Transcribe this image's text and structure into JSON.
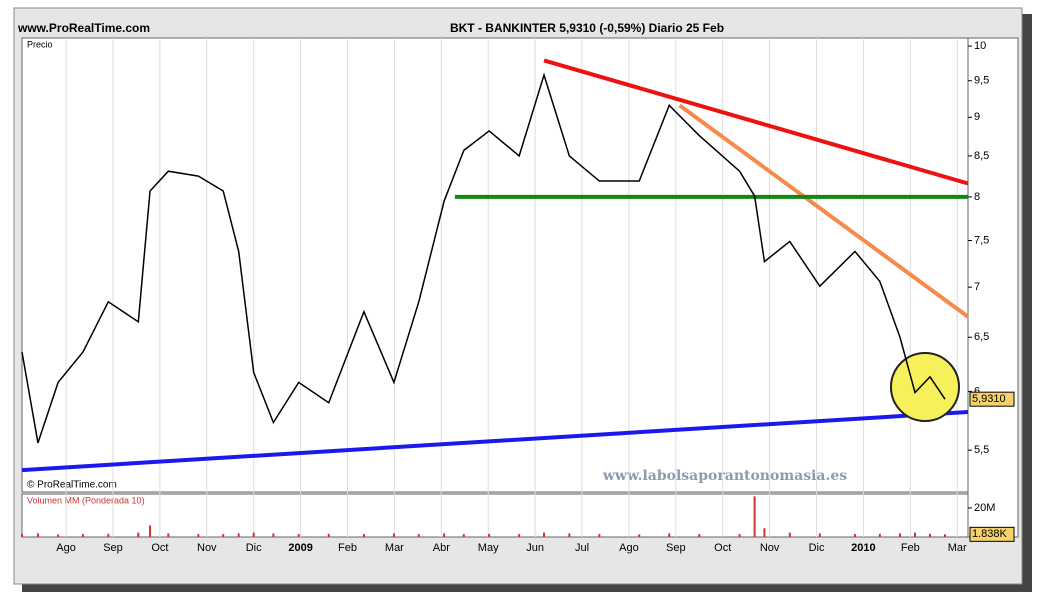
{
  "chart_data": [
    {
      "type": "line",
      "site": "www.ProRealTime.com",
      "title": "BKT - BANKINTER   5,9310 (-0,59%)   Diario  25 Feb",
      "y_label": "Precio",
      "copyright": "© ProRealTime.com",
      "watermark": "www.labolsaporantonomasia.es",
      "log_scale": true,
      "color": "#000000",
      "x": [
        -0.94,
        -0.6,
        -0.17,
        0.36,
        0.9,
        1.54,
        1.79,
        2.18,
        2.82,
        3.35,
        3.68,
        4.0,
        4.42,
        4.96,
        5.6,
        6.35,
        6.99,
        7.52,
        8.06,
        8.48,
        9.02,
        9.66,
        10.19,
        10.73,
        11.37,
        12.22,
        12.86,
        13.5,
        14.36,
        14.68,
        14.89,
        15.43,
        16.07,
        16.82,
        17.35,
        17.78,
        18.1,
        18.42,
        18.74
      ],
      "values": [
        6.36,
        5.56,
        6.08,
        6.36,
        6.85,
        6.65,
        8.07,
        8.31,
        8.25,
        8.07,
        7.38,
        6.17,
        5.73,
        6.08,
        5.9,
        6.75,
        6.08,
        6.85,
        7.95,
        8.57,
        8.82,
        8.5,
        9.58,
        8.5,
        8.19,
        8.19,
        9.16,
        8.76,
        8.31,
        8.01,
        7.27,
        7.49,
        7.01,
        7.38,
        7.06,
        6.5,
        5.99,
        6.13,
        5.931
      ],
      "last_value": {
        "value": 5.931,
        "label": "5,9310"
      },
      "xlim": [
        -0.94,
        19.23
      ],
      "ylim": [
        5.17,
        10.12
      ],
      "yticks": [
        {
          "value": 5.5,
          "label": "5,5"
        },
        6,
        {
          "value": 6.5,
          "label": "6,5"
        },
        7,
        {
          "value": 7.5,
          "label": "7,5"
        },
        8,
        {
          "value": 8.5,
          "label": "8,5"
        },
        9,
        {
          "value": 9.5,
          "label": "9,5"
        },
        10
      ],
      "xticks": [
        {
          "value": 0,
          "label": "Ago"
        },
        {
          "value": 1,
          "label": "Sep"
        },
        {
          "value": 2,
          "label": "Oct"
        },
        {
          "value": 3,
          "label": "Nov"
        },
        {
          "value": 4,
          "label": "Dic"
        },
        {
          "value": 5,
          "label": "2009"
        },
        {
          "value": 6,
          "label": "Feb"
        },
        {
          "value": 7,
          "label": "Mar"
        },
        {
          "value": 8,
          "label": "Abr"
        },
        {
          "value": 9,
          "label": "May"
        },
        {
          "value": 10,
          "label": "Jun"
        },
        {
          "value": 11,
          "label": "Jul"
        },
        {
          "value": 12,
          "label": "Ago"
        },
        {
          "value": 13,
          "label": "Sep"
        },
        {
          "value": 14,
          "label": "Oct"
        },
        {
          "value": 15,
          "label": "Nov"
        },
        {
          "value": 16,
          "label": "Dic"
        },
        {
          "value": 17,
          "label": "2010"
        },
        {
          "value": 18,
          "label": "Feb"
        },
        {
          "value": 19,
          "label": "Mar"
        }
      ],
      "trend_lines": [
        {
          "color": "#ee1111",
          "x": [
            10.19,
            19.23
          ],
          "values": [
            9.79,
            8.16
          ]
        },
        {
          "color": "#f78a4a",
          "x": [
            13.08,
            19.23
          ],
          "values": [
            9.16,
            6.7
          ]
        },
        {
          "color": "#118811",
          "x": [
            8.29,
            19.23
          ],
          "values": [
            8,
            8
          ]
        },
        {
          "color": "#1a1aee",
          "x": [
            -0.94,
            19.23
          ],
          "values": [
            5.34,
            5.82
          ]
        }
      ]
    },
    {
      "type": "bar",
      "title": "Volumen MM (Ponderada 10)",
      "color": "#cc3333",
      "x": [
        -0.94,
        -0.6,
        -0.17,
        0.36,
        0.9,
        1.54,
        1.79,
        2.18,
        2.82,
        3.35,
        3.68,
        4.0,
        4.42,
        4.96,
        5.6,
        6.35,
        6.99,
        7.52,
        8.06,
        8.48,
        9.02,
        9.66,
        10.19,
        10.73,
        11.37,
        12.22,
        12.86,
        13.5,
        14.36,
        14.68,
        14.89,
        15.43,
        16.07,
        16.82,
        17.35,
        17.78,
        18.1,
        18.42,
        18.74
      ],
      "values": [
        2000000,
        2500000,
        1800000,
        2000000,
        2200000,
        3000000,
        8000000,
        2500000,
        2000000,
        2000000,
        2500000,
        3000000,
        2500000,
        2000000,
        2200000,
        2000000,
        2500000,
        2000000,
        2500000,
        2000000,
        2200000,
        2000000,
        3000000,
        2500000,
        2000000,
        1800000,
        2500000,
        2000000,
        2000000,
        28000000,
        6000000,
        3000000,
        2500000,
        2000000,
        2200000,
        2500000,
        3000000,
        2200000,
        1838000
      ],
      "last_value": {
        "value": 1838000,
        "label": "1.838K"
      },
      "xlim": [
        -0.94,
        19.23
      ],
      "ylim": [
        0,
        29600000
      ],
      "yticks": [
        {
          "value": 20000000,
          "label": "20M"
        }
      ]
    }
  ]
}
